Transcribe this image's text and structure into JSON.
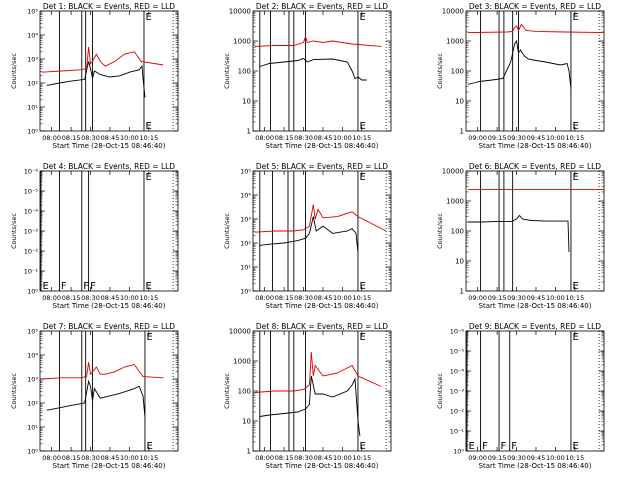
{
  "figure": {
    "background": "#ffffff",
    "axis_color": "#000000",
    "events_color": "#000000",
    "lld_color": "#e00000",
    "ylabel": "Counts/sec",
    "xlabel": "Start Time (28-Oct-15 08:46:40)"
  },
  "chart_data": [
    {
      "type": "line",
      "panel": 1,
      "title": "Det 1: BLACK = Events, RED = LLD",
      "yscale": "log",
      "ylim_exp": [
        0,
        5
      ],
      "ytick_style": "exp",
      "ytick_labels": [
        "10⁰",
        "10¹",
        "10²",
        "10³",
        "10⁴",
        "10⁵"
      ],
      "xlim_min": [
        -2,
        140
      ],
      "xtick_labels": [
        "08:00",
        "08:15",
        "08:30",
        "08:45",
        "10:00",
        "10:15"
      ],
      "ylabel": "Counts/sec",
      "xlabel": "Start Time (28-Oct-15 08:46:40)",
      "markers": [
        {
          "x": 18,
          "letter": ""
        },
        {
          "x": 41,
          "letter": ""
        },
        {
          "x": 45,
          "letter": ""
        },
        {
          "x": 52,
          "letter": ""
        },
        {
          "x": 105,
          "letter": "E"
        }
      ],
      "dotted_x": [
        135
      ],
      "series": [
        {
          "name": "Events",
          "x": [
            5,
            18,
            30,
            44,
            48,
            50,
            52,
            54,
            60,
            70,
            80,
            90,
            100,
            103,
            104,
            106
          ],
          "y_exp": [
            1.9,
            2.0,
            2.08,
            2.15,
            2.9,
            2.6,
            2.2,
            2.5,
            2.35,
            2.25,
            2.3,
            2.45,
            2.55,
            2.7,
            2.2,
            1.4
          ]
        },
        {
          "name": "LLD",
          "x": [
            0,
            20,
            40,
            46,
            48,
            50,
            52,
            56,
            60,
            65,
            75,
            85,
            95,
            102,
            125
          ],
          "y_exp": [
            2.45,
            2.5,
            2.55,
            2.6,
            3.5,
            2.8,
            2.9,
            3.2,
            2.9,
            2.7,
            2.9,
            3.2,
            3.3,
            2.9,
            2.75
          ]
        }
      ]
    },
    {
      "type": "line",
      "panel": 2,
      "title": "Det 2: BLACK = Events, RED = LLD",
      "yscale": "log",
      "ylim_exp": [
        0,
        4
      ],
      "ytick_style": "num",
      "ytick_labels": [
        "1",
        "10",
        "100",
        "1000",
        "10000"
      ],
      "xlim_min": [
        -2,
        140
      ],
      "xtick_labels": [
        "08:00",
        "08:15",
        "08:30",
        "08:45",
        "10:00",
        "10:15"
      ],
      "markers": [
        {
          "x": 5,
          "letter": ""
        },
        {
          "x": 16,
          "letter": ""
        },
        {
          "x": 35,
          "letter": ""
        },
        {
          "x": 40,
          "letter": ""
        },
        {
          "x": 52,
          "letter": ""
        },
        {
          "x": 106,
          "letter": "E"
        }
      ],
      "dotted_x": [
        135
      ],
      "series": [
        {
          "name": "Events",
          "x": [
            5,
            15,
            30,
            44,
            50,
            54,
            60,
            80,
            95,
            100,
            103,
            106,
            110,
            115
          ],
          "y_exp": [
            2.15,
            2.25,
            2.3,
            2.35,
            2.42,
            2.3,
            2.38,
            2.4,
            2.3,
            2.0,
            1.75,
            1.8,
            1.7,
            1.7
          ]
        },
        {
          "name": "LLD",
          "x": [
            0,
            20,
            40,
            50,
            52,
            54,
            60,
            70,
            80,
            100,
            130
          ],
          "y_exp": [
            2.82,
            2.85,
            2.85,
            2.95,
            3.15,
            2.95,
            3.0,
            2.95,
            3.0,
            2.9,
            2.82
          ]
        }
      ]
    },
    {
      "type": "line",
      "panel": 3,
      "title": "Det 3: BLACK = Events, RED = LLD",
      "yscale": "log",
      "ylim_exp": [
        0,
        4
      ],
      "ytick_style": "num",
      "ytick_labels": [
        "1",
        "10",
        "100",
        "1000",
        "10000"
      ],
      "xlim_min": [
        -2,
        140
      ],
      "xtick_labels": [
        "09:00",
        "09:15",
        "09:30",
        "09:45",
        "10:00",
        "10:15"
      ],
      "markers": [
        {
          "x": 13,
          "letter": ""
        },
        {
          "x": 32,
          "letter": ""
        },
        {
          "x": 37,
          "letter": ""
        },
        {
          "x": 46,
          "letter": ""
        },
        {
          "x": 52,
          "letter": ""
        },
        {
          "x": 106,
          "letter": "E"
        }
      ],
      "dotted_x": [
        135
      ],
      "series": [
        {
          "name": "Events",
          "x": [
            0,
            12,
            25,
            36,
            44,
            48,
            50,
            52,
            54,
            58,
            62,
            70,
            80,
            95,
            102,
            104,
            106
          ],
          "y_exp": [
            1.55,
            1.65,
            1.7,
            1.75,
            2.3,
            2.9,
            3.0,
            2.6,
            2.7,
            2.5,
            2.4,
            2.35,
            2.3,
            2.2,
            2.25,
            2.0,
            1.4
          ]
        },
        {
          "name": "LLD",
          "x": [
            0,
            40,
            46,
            48,
            50,
            52,
            55,
            60,
            70,
            100,
            140
          ],
          "y_exp": [
            3.28,
            3.3,
            3.32,
            3.45,
            3.5,
            3.35,
            3.55,
            3.35,
            3.32,
            3.3,
            3.28
          ]
        }
      ]
    },
    {
      "type": "line",
      "panel": 4,
      "title": "Det 4: BLACK = Events, RED = LLD",
      "yscale": "log",
      "ylim_exp": [
        -6,
        0
      ],
      "ytick_style": "exp",
      "ytick_labels": [
        "10⁰",
        "10⁻¹",
        "10⁻²",
        "10⁻³",
        "10⁻⁴",
        "10⁻⁵",
        "10⁻⁶"
      ],
      "xlim_min": [
        -2,
        140
      ],
      "xtick_labels": [
        "08:00",
        "08:15",
        "08:30",
        "08:45",
        "10:00",
        "10:15"
      ],
      "markers": [
        {
          "x": -1,
          "letter": "E"
        },
        {
          "x": 18,
          "letter": "F"
        },
        {
          "x": 41,
          "letter": "F"
        },
        {
          "x": 48,
          "letter": "F"
        },
        {
          "x": 105,
          "letter": "E"
        }
      ],
      "dotted_x": [
        135
      ],
      "series": []
    },
    {
      "type": "line",
      "panel": 5,
      "title": "Det 5: BLACK = Events, RED = LLD",
      "yscale": "log",
      "ylim_exp": [
        0,
        5
      ],
      "ytick_style": "exp",
      "ytick_labels": [
        "10⁰",
        "10¹",
        "10²",
        "10³",
        "10⁴",
        "10⁵"
      ],
      "xlim_min": [
        -2,
        140
      ],
      "xtick_labels": [
        "08:00",
        "08:15",
        "08:30",
        "08:45",
        "10:00",
        "10:15"
      ],
      "markers": [
        {
          "x": 5,
          "letter": ""
        },
        {
          "x": 18,
          "letter": ""
        },
        {
          "x": 34,
          "letter": ""
        },
        {
          "x": 40,
          "letter": ""
        },
        {
          "x": 52,
          "letter": ""
        },
        {
          "x": 106,
          "letter": "E"
        }
      ],
      "dotted_x": [
        135
      ],
      "series": [
        {
          "name": "Events",
          "x": [
            5,
            15,
            30,
            44,
            52,
            56,
            60,
            63,
            70,
            80,
            95,
            100,
            104,
            106
          ],
          "y_exp": [
            1.9,
            1.95,
            2.0,
            2.1,
            2.2,
            2.4,
            3.1,
            2.5,
            2.7,
            2.4,
            2.5,
            2.6,
            2.4,
            1.6
          ]
        },
        {
          "name": "LLD",
          "x": [
            0,
            20,
            40,
            50,
            56,
            60,
            62,
            65,
            70,
            85,
            100,
            106,
            135
          ],
          "y_exp": [
            2.45,
            2.5,
            2.5,
            2.55,
            2.7,
            3.6,
            3.0,
            3.4,
            3.05,
            3.1,
            3.3,
            3.1,
            2.5
          ]
        }
      ]
    },
    {
      "type": "line",
      "panel": 6,
      "title": "Det 6: BLACK = Events, RED = LLD",
      "yscale": "log",
      "ylim_exp": [
        0,
        4
      ],
      "ytick_style": "num",
      "ytick_labels": [
        "1",
        "10",
        "100",
        "1000",
        "10000"
      ],
      "xlim_min": [
        -2,
        140
      ],
      "xtick_labels": [
        "09:00",
        "09:15",
        "09:30",
        "09:45",
        "10:00",
        "10:15"
      ],
      "markers": [
        {
          "x": 13,
          "letter": ""
        },
        {
          "x": 32,
          "letter": ""
        },
        {
          "x": 37,
          "letter": ""
        },
        {
          "x": 46,
          "letter": ""
        },
        {
          "x": 106,
          "letter": "E"
        }
      ],
      "dotted_x": [
        135
      ],
      "series": [
        {
          "name": "Events",
          "x": [
            0,
            15,
            30,
            45,
            50,
            53,
            56,
            65,
            80,
            100,
            103,
            104
          ],
          "y_exp": [
            2.3,
            2.3,
            2.32,
            2.32,
            2.4,
            2.52,
            2.4,
            2.35,
            2.33,
            2.33,
            2.33,
            1.3
          ]
        },
        {
          "name": "LLD",
          "x": [
            0,
            140
          ],
          "y_exp": [
            3.38,
            3.38
          ]
        }
      ]
    },
    {
      "type": "line",
      "panel": 7,
      "title": "Det 7: BLACK = Events, RED = LLD",
      "yscale": "log",
      "ylim_exp": [
        0,
        5
      ],
      "ytick_style": "exp",
      "ytick_labels": [
        "10⁰",
        "10¹",
        "10²",
        "10³",
        "10⁴",
        "10⁵"
      ],
      "xlim_min": [
        -2,
        140
      ],
      "xtick_labels": [
        "08:00",
        "08:15",
        "08:30",
        "08:45",
        "10:00",
        "10:15"
      ],
      "markers": [
        {
          "x": 18,
          "letter": ""
        },
        {
          "x": 41,
          "letter": ""
        },
        {
          "x": 45,
          "letter": ""
        },
        {
          "x": 52,
          "letter": ""
        },
        {
          "x": 106,
          "letter": "E"
        }
      ],
      "dotted_x": [
        135
      ],
      "series": [
        {
          "name": "Events",
          "x": [
            5,
            18,
            30,
            44,
            48,
            50,
            52,
            54,
            60,
            70,
            80,
            95,
            100,
            104,
            106
          ],
          "y_exp": [
            1.7,
            1.8,
            1.9,
            2.0,
            2.9,
            2.7,
            2.1,
            2.6,
            2.2,
            2.3,
            2.4,
            2.6,
            2.7,
            2.3,
            1.4
          ]
        },
        {
          "name": "LLD",
          "x": [
            0,
            20,
            40,
            46,
            48,
            50,
            52,
            56,
            60,
            65,
            75,
            85,
            95,
            104,
            125
          ],
          "y_exp": [
            3.0,
            3.05,
            3.05,
            3.1,
            3.7,
            3.2,
            3.3,
            3.5,
            3.2,
            3.2,
            3.3,
            3.5,
            3.6,
            3.1,
            3.05
          ]
        }
      ]
    },
    {
      "type": "line",
      "panel": 8,
      "title": "Det 8: BLACK = Events, RED = LLD",
      "yscale": "log",
      "ylim_exp": [
        0,
        4
      ],
      "ytick_style": "num",
      "ytick_labels": [
        "1",
        "10",
        "100",
        "1000",
        "10000"
      ],
      "xlim_min": [
        -2,
        140
      ],
      "xtick_labels": [
        "08:00",
        "08:15",
        "08:30",
        "08:45",
        "10:00",
        "10:15"
      ],
      "markers": [
        {
          "x": 5,
          "letter": ""
        },
        {
          "x": 16,
          "letter": ""
        },
        {
          "x": 35,
          "letter": ""
        },
        {
          "x": 40,
          "letter": ""
        },
        {
          "x": 52,
          "letter": ""
        },
        {
          "x": 106,
          "letter": "E"
        }
      ],
      "dotted_x": [
        135
      ],
      "series": [
        {
          "name": "Events",
          "x": [
            5,
            15,
            30,
            44,
            52,
            56,
            58,
            62,
            70,
            80,
            95,
            100,
            103,
            106,
            108
          ],
          "y_exp": [
            1.15,
            1.2,
            1.25,
            1.3,
            1.4,
            1.55,
            2.5,
            1.9,
            1.9,
            1.8,
            2.0,
            2.2,
            2.4,
            1.0,
            0.5
          ]
        },
        {
          "name": "LLD",
          "x": [
            0,
            20,
            40,
            50,
            56,
            58,
            60,
            62,
            70,
            85,
            100,
            106,
            130
          ],
          "y_exp": [
            1.95,
            2.0,
            2.0,
            2.05,
            2.2,
            3.3,
            2.5,
            2.85,
            2.5,
            2.6,
            2.85,
            2.5,
            2.15
          ]
        }
      ]
    },
    {
      "type": "line",
      "panel": 9,
      "title": "Det 9: BLACK = Events, RED = LLD",
      "yscale": "log",
      "ylim_exp": [
        -6,
        0
      ],
      "ytick_style": "exp",
      "ytick_labels": [
        "10⁰",
        "10⁻¹",
        "10⁻²",
        "10⁻³",
        "10⁻⁴",
        "10⁻⁵",
        "10⁻⁶"
      ],
      "xlim_min": [
        -2,
        140
      ],
      "xtick_labels": [
        "09:00",
        "09:15",
        "09:30",
        "09:45",
        "10:00",
        "10:15"
      ],
      "markers": [
        {
          "x": -1,
          "letter": "E"
        },
        {
          "x": 13,
          "letter": "F"
        },
        {
          "x": 32,
          "letter": "F"
        },
        {
          "x": 43,
          "letter": "F"
        },
        {
          "x": 106,
          "letter": "E"
        }
      ],
      "dotted_x": [
        135
      ],
      "series": []
    }
  ]
}
